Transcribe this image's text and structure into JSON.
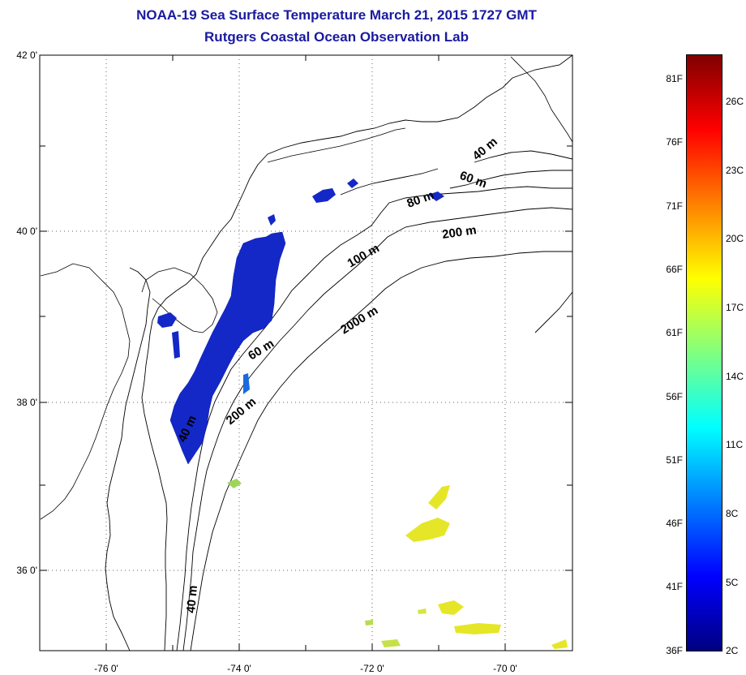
{
  "title": "NOAA-19 Sea Surface Temperature March 21, 2015 1727 GMT",
  "subtitle": "Rutgers Coastal Ocean Observation Lab",
  "lat_labels": [
    "42 0'",
    "40 0'",
    "38 0'",
    "36 0'"
  ],
  "lon_labels": [
    "-76 0'",
    "-74 0'",
    "-72 0'",
    "-70 0'"
  ],
  "contour_labels": [
    "40 m",
    "60 m",
    "80 m",
    "200 m",
    "100 m",
    "2000 m",
    "60 m",
    "200 m",
    "40 m",
    "40 m"
  ],
  "colorbar": {
    "f_labels": [
      "81F",
      "76F",
      "71F",
      "66F",
      "61F",
      "56F",
      "51F",
      "46F",
      "41F",
      "36F"
    ],
    "c_labels": [
      "26C",
      "23C",
      "20C",
      "17C",
      "14C",
      "11C",
      "8C",
      "5C",
      "2C"
    ]
  },
  "colors": {
    "title": "#1a1aa0",
    "cold_water": "#1428c8",
    "warm_water": "#e6e628"
  }
}
